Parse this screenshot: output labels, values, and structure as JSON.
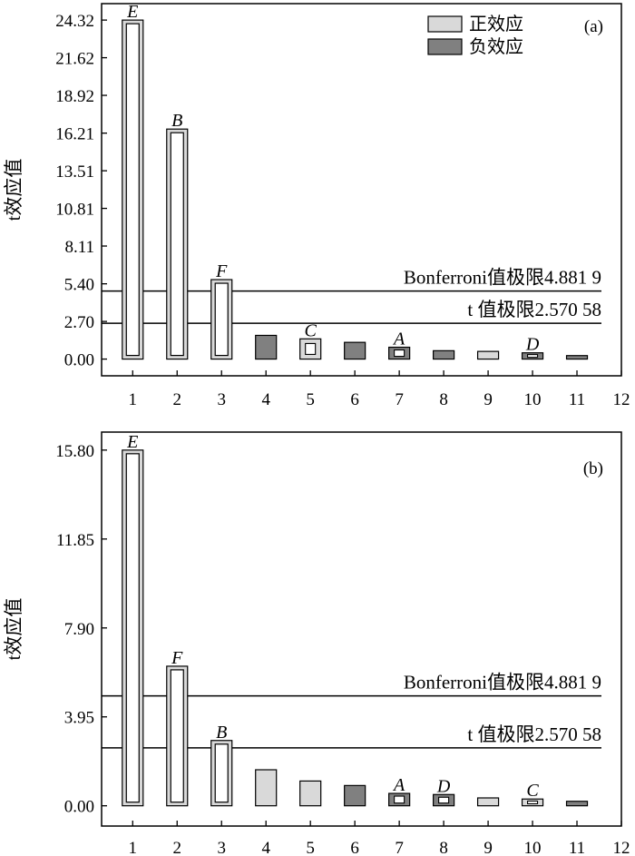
{
  "chart_data": [
    {
      "type": "bar",
      "panel_label": "(a)",
      "ylabel": "t效应值",
      "ylim": [
        -1.2,
        25.5
      ],
      "xlim": [
        0.3,
        12
      ],
      "x_ticks": [
        "1",
        "2",
        "3",
        "4",
        "5",
        "6",
        "7",
        "8",
        "9",
        "10",
        "11",
        "12"
      ],
      "y_ticks": [
        "0.00",
        "2.70",
        "5.40",
        "8.11",
        "10.81",
        "13.51",
        "16.21",
        "18.92",
        "21.62",
        "24.32"
      ],
      "legend": {
        "position": "top-right",
        "entries": [
          {
            "label": "正效应",
            "color": "#d9d9d9"
          },
          {
            "label": "负效应",
            "color": "#808080"
          }
        ]
      },
      "thresholds": [
        {
          "label": "Bonferroni值极限4.881 9",
          "value": 4.8819
        },
        {
          "label": "t 值极限2.570 58",
          "value": 2.57058
        }
      ],
      "bars": [
        {
          "x": 1,
          "value": 24.32,
          "effect": "positive",
          "letter": "E",
          "significant": true
        },
        {
          "x": 2,
          "value": 16.5,
          "effect": "positive",
          "letter": "B",
          "significant": true
        },
        {
          "x": 3,
          "value": 5.7,
          "effect": "positive",
          "letter": "F",
          "significant": true
        },
        {
          "x": 4,
          "value": 1.7,
          "effect": "negative",
          "letter": "",
          "significant": false
        },
        {
          "x": 5,
          "value": 1.45,
          "effect": "positive",
          "letter": "C",
          "significant": false,
          "boxed": true
        },
        {
          "x": 6,
          "value": 1.2,
          "effect": "negative",
          "letter": "",
          "significant": false
        },
        {
          "x": 7,
          "value": 0.85,
          "effect": "negative",
          "letter": "A",
          "significant": false,
          "boxed": true
        },
        {
          "x": 8,
          "value": 0.6,
          "effect": "negative",
          "letter": "",
          "significant": false
        },
        {
          "x": 9,
          "value": 0.55,
          "effect": "positive",
          "letter": "",
          "significant": false
        },
        {
          "x": 10,
          "value": 0.45,
          "effect": "negative",
          "letter": "D",
          "significant": false,
          "boxed": true
        },
        {
          "x": 11,
          "value": 0.25,
          "effect": "negative",
          "letter": "",
          "significant": false
        }
      ]
    },
    {
      "type": "bar",
      "panel_label": "(b)",
      "ylabel": "t效应值",
      "ylim": [
        -0.9,
        16.6
      ],
      "xlim": [
        0.3,
        12
      ],
      "x_ticks": [
        "1",
        "2",
        "3",
        "4",
        "5",
        "6",
        "7",
        "8",
        "9",
        "10",
        "11",
        "12"
      ],
      "y_ticks": [
        "0.00",
        "3.95",
        "7.90",
        "11.85",
        "15.80"
      ],
      "thresholds": [
        {
          "label": "Bonferroni值极限4.881 9",
          "value": 4.8819
        },
        {
          "label": "t 值极限2.570 58",
          "value": 2.57058
        }
      ],
      "bars": [
        {
          "x": 1,
          "value": 15.8,
          "effect": "positive",
          "letter": "E",
          "significant": true
        },
        {
          "x": 2,
          "value": 6.2,
          "effect": "positive",
          "letter": "F",
          "significant": true
        },
        {
          "x": 3,
          "value": 2.9,
          "effect": "positive",
          "letter": "B",
          "significant": true
        },
        {
          "x": 4,
          "value": 1.6,
          "effect": "positive",
          "letter": "",
          "significant": false
        },
        {
          "x": 5,
          "value": 1.1,
          "effect": "positive",
          "letter": "",
          "significant": false
        },
        {
          "x": 6,
          "value": 0.9,
          "effect": "negative",
          "letter": "",
          "significant": false
        },
        {
          "x": 7,
          "value": 0.55,
          "effect": "negative",
          "letter": "A",
          "significant": false,
          "boxed": true
        },
        {
          "x": 8,
          "value": 0.5,
          "effect": "negative",
          "letter": "D",
          "significant": false,
          "boxed": true
        },
        {
          "x": 9,
          "value": 0.35,
          "effect": "positive",
          "letter": "",
          "significant": false
        },
        {
          "x": 10,
          "value": 0.3,
          "effect": "positive",
          "letter": "C",
          "significant": false,
          "boxed": true
        },
        {
          "x": 11,
          "value": 0.2,
          "effect": "negative",
          "letter": "",
          "significant": false
        }
      ]
    }
  ]
}
